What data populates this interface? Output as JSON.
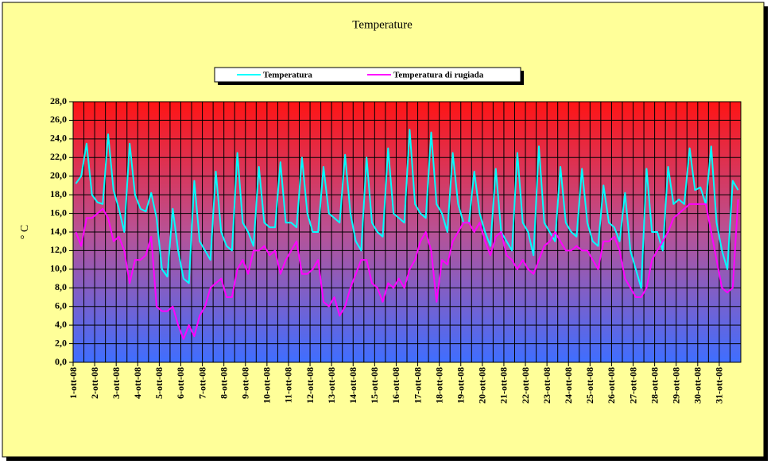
{
  "chart_data": {
    "type": "line",
    "title": "Temperature",
    "y_label": "° C",
    "categories": [
      "1-ott-08",
      null,
      null,
      null,
      "2-ott-08",
      null,
      null,
      null,
      "3-ott-08",
      null,
      null,
      null,
      "4-ott-08",
      null,
      null,
      null,
      "5-ott-08",
      null,
      null,
      null,
      "6-ott-08",
      null,
      null,
      null,
      "7-ott-08",
      null,
      null,
      null,
      "8-ott-08",
      null,
      null,
      null,
      "9-ott-08",
      null,
      null,
      null,
      "10-ott-08",
      null,
      null,
      null,
      "11-ott-08",
      null,
      null,
      null,
      "12-ott-08",
      null,
      null,
      null,
      "13-ott-08",
      null,
      null,
      null,
      "14-ott-08",
      null,
      null,
      null,
      "15-ott-08",
      null,
      null,
      null,
      "16-ott-08",
      null,
      null,
      null,
      "17-ott-08",
      null,
      null,
      null,
      "18-ott-08",
      null,
      null,
      null,
      "19-ott-08",
      null,
      null,
      null,
      "20-ott-08",
      null,
      null,
      null,
      "21-ott-08",
      null,
      null,
      null,
      "22-ott-08",
      null,
      null,
      null,
      "23-ott-08",
      null,
      null,
      null,
      "24-ott-08",
      null,
      null,
      null,
      "25-ott-08",
      null,
      null,
      null,
      "26-ott-08",
      null,
      null,
      null,
      "27-ott-08",
      null,
      null,
      null,
      "28-ott-08",
      null,
      null,
      null,
      "29-ott-08",
      null,
      null,
      null,
      "30-ott-08",
      null,
      null,
      null,
      "31-ott-08",
      null,
      null,
      null
    ],
    "series": [
      {
        "name": "Temperatura",
        "color": "#00ffff",
        "values": [
          19.2,
          20,
          23.5,
          18,
          17.2,
          17,
          24.5,
          18.5,
          16.5,
          14,
          23.5,
          18,
          16.5,
          16.2,
          18.2,
          15.5,
          10,
          9.2,
          16.5,
          12,
          9,
          8.5,
          19.5,
          13,
          12,
          11,
          20.5,
          14,
          12.5,
          12,
          22.5,
          15,
          14,
          12.5,
          21,
          15,
          14.5,
          14.5,
          21.5,
          15,
          15,
          14.5,
          22,
          16,
          14,
          14,
          21,
          16,
          15.5,
          15,
          22.3,
          16,
          13,
          12,
          22,
          15,
          14,
          13.5,
          23,
          16,
          15.5,
          15,
          25,
          17,
          16,
          15.5,
          24.7,
          17,
          16,
          14,
          22.5,
          17,
          15,
          15,
          20.5,
          16,
          14,
          12.5,
          20.8,
          14,
          13,
          12,
          22.5,
          15,
          14,
          11.5,
          23.2,
          15,
          14,
          13,
          21,
          15,
          14,
          13.5,
          20.8,
          15,
          13,
          12.5,
          19,
          15,
          14.5,
          13,
          18.2,
          12,
          10,
          8,
          20.8,
          14,
          14,
          12,
          21,
          17,
          17.5,
          17,
          23,
          18.5,
          18.8,
          17,
          23.2,
          15,
          12,
          10,
          19.5,
          18.5
        ]
      },
      {
        "name": "Temperatura di rugiada",
        "color": "#ff00ff",
        "values": [
          14,
          12.5,
          15.5,
          15.5,
          16,
          16.5,
          15.5,
          13,
          13.5,
          12,
          8.5,
          11,
          11,
          11.5,
          13.5,
          6,
          5.5,
          5.5,
          6,
          4,
          2.5,
          4,
          2.8,
          5,
          6,
          8,
          8.5,
          9,
          7,
          7,
          10,
          11,
          9.5,
          12,
          12,
          12.5,
          11.5,
          12,
          9.5,
          11,
          12,
          13,
          9.5,
          9.5,
          10,
          11,
          6.5,
          6,
          7,
          5,
          6,
          8,
          9.5,
          11,
          11,
          8.5,
          8,
          6.5,
          8.5,
          8,
          9,
          8,
          10,
          11,
          13,
          14,
          12,
          6.5,
          11,
          10.5,
          13,
          14,
          15,
          15,
          14,
          15,
          13,
          11.5,
          13.5,
          14,
          11.5,
          11,
          10,
          11,
          10,
          9.5,
          11,
          12.5,
          13,
          14,
          13,
          12,
          12,
          12.5,
          12,
          12,
          11,
          10,
          13,
          13,
          13.5,
          12,
          9,
          8,
          7,
          7,
          8,
          11,
          12,
          13,
          14,
          15.5,
          16,
          16.5,
          17,
          17,
          17,
          17,
          14,
          11,
          8,
          7.5,
          8,
          17.5
        ]
      }
    ],
    "ylim": [
      0,
      28
    ],
    "yticks": [
      {
        "value": 0,
        "label": "0,0"
      },
      {
        "value": 2,
        "label": "2,0"
      },
      {
        "value": 4,
        "label": "4,0"
      },
      {
        "value": 6,
        "label": "6,0"
      },
      {
        "value": 8,
        "label": "8,0"
      },
      {
        "value": 10,
        "label": "10,0"
      },
      {
        "value": 12,
        "label": "12,0"
      },
      {
        "value": 14,
        "label": "14,0"
      },
      {
        "value": 16,
        "label": "16,0"
      },
      {
        "value": 18,
        "label": "18,0"
      },
      {
        "value": 20,
        "label": "20,0"
      },
      {
        "value": 22,
        "label": "22,0"
      },
      {
        "value": 24,
        "label": "24,0"
      },
      {
        "value": 26,
        "label": "26,0"
      },
      {
        "value": 28,
        "label": "28,0"
      }
    ],
    "grid": true,
    "legend": "top"
  }
}
